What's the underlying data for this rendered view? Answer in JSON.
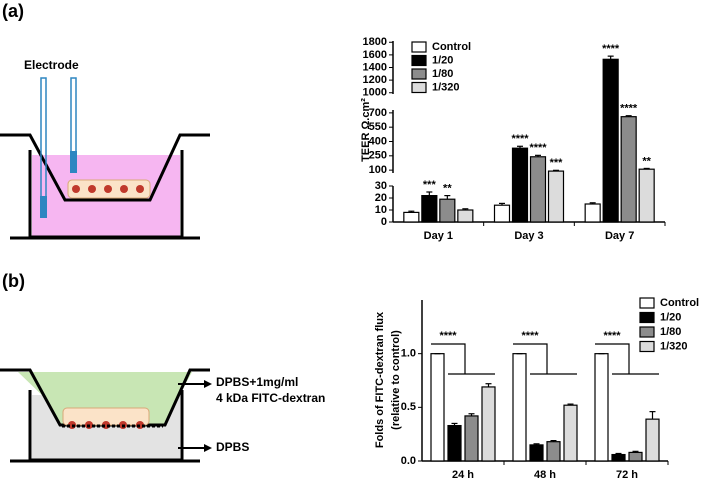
{
  "panel_labels": [
    "(a)",
    "(b)"
  ],
  "diagrams": {
    "a": {
      "electrode": "Electrode"
    },
    "b": {
      "top_label": "DPBS+1mg/ml",
      "top_label_2": "4 kDa FITC-dextran",
      "bottom_label": "DPBS"
    }
  },
  "chart_data": [
    {
      "type": "bar",
      "y_label": "TEER  Ω.cm²",
      "categories": [
        "Day 1",
        "Day 3",
        "Day 7"
      ],
      "legend": "top-left",
      "y_segments": [
        {
          "ylim": [
            0,
            30
          ],
          "yticks": [
            0,
            10,
            20,
            30
          ]
        },
        {
          "ylim": [
            70,
            730
          ],
          "yticks": [
            100,
            250,
            400,
            550,
            700
          ]
        },
        {
          "ylim": [
            980,
            1820
          ],
          "yticks": [
            1000,
            1200,
            1400,
            1600,
            1800
          ]
        }
      ],
      "series": [
        {
          "name": "Control",
          "color": "#ffffff",
          "values": [
            8,
            14,
            15
          ],
          "errors": [
            1,
            1.5,
            1
          ]
        },
        {
          "name": "1/20",
          "color": "#000000",
          "values": [
            22,
            330,
            1530
          ],
          "errors": [
            3,
            20,
            50
          ],
          "annotations": [
            "***",
            "****",
            "****"
          ]
        },
        {
          "name": "1/80",
          "color": "#8c8c8c",
          "values": [
            19,
            240,
            660
          ],
          "errors": [
            3,
            15,
            10
          ],
          "annotations": [
            "**",
            "****",
            "****"
          ]
        },
        {
          "name": "1/320",
          "color": "#dcdcdc",
          "values": [
            10,
            90,
            110
          ],
          "errors": [
            1,
            8,
            8
          ],
          "annotations": [
            null,
            "***",
            "**"
          ]
        }
      ]
    },
    {
      "type": "bar",
      "y_label": [
        "Folds of FITC-dextran flux",
        "(relative to control)"
      ],
      "categories": [
        "24 h",
        "48 h",
        "72 h"
      ],
      "legend": "top-right",
      "ylim": [
        0,
        1.5
      ],
      "yticks": [
        {
          "value": 0,
          "label": "0.0"
        },
        {
          "value": 0.5,
          "label": "0.5"
        },
        {
          "value": 1,
          "label": "1.0"
        }
      ],
      "significance": [
        "****",
        "****",
        "****"
      ],
      "series": [
        {
          "name": "Control",
          "color": "#ffffff",
          "values": [
            1,
            1,
            1
          ],
          "errors": [
            0,
            0,
            0
          ]
        },
        {
          "name": "1/20",
          "color": "#000000",
          "values": [
            0.33,
            0.15,
            0.06
          ],
          "errors": [
            0.02,
            0.01,
            0.01
          ]
        },
        {
          "name": "1/80",
          "color": "#8c8c8c",
          "values": [
            0.42,
            0.18,
            0.08
          ],
          "errors": [
            0.02,
            0.01,
            0.01
          ]
        },
        {
          "name": "1/320",
          "color": "#dcdcdc",
          "values": [
            0.69,
            0.52,
            0.39
          ],
          "errors": [
            0.03,
            0.01,
            0.07
          ]
        }
      ]
    }
  ]
}
